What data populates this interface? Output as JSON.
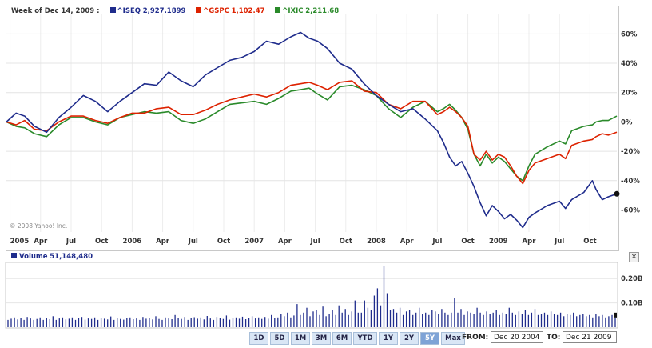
{
  "legend": {
    "week_label": "Week of Dec 14, 2009 :",
    "series": [
      {
        "name": "^ISEQ",
        "value": "2,927.1899",
        "color": "#1f2c8c"
      },
      {
        "name": "^GSPC",
        "value": "1,102.47",
        "color": "#dd2200"
      },
      {
        "name": "^IXIC",
        "value": "2,211.68",
        "color": "#2a8a2a"
      }
    ]
  },
  "copyright": "© 2008 Yahoo! Inc.",
  "volume": {
    "label": "Volume",
    "value": "51,148,480",
    "color": "#1f2c8c"
  },
  "close_button": "×",
  "range_buttons": [
    "1D",
    "5D",
    "1M",
    "3M",
    "6M",
    "YTD",
    "1Y",
    "2Y",
    "5Y",
    "Max"
  ],
  "active_range": "5Y",
  "from_label": "FROM:",
  "from_date": "Dec 20 2004",
  "to_label": "TO:",
  "to_date": "Dec 21 2009",
  "chart_data": [
    {
      "type": "line",
      "x_ticks": [
        "2005",
        "Apr",
        "Jul",
        "Oct",
        "2006",
        "Apr",
        "Jul",
        "Oct",
        "2007",
        "Apr",
        "Jul",
        "Oct",
        "2008",
        "Apr",
        "Jul",
        "Oct",
        "2009",
        "Apr",
        "Jul",
        "Oct"
      ],
      "y_ticks": [
        "60%",
        "40%",
        "20%",
        "0%",
        "-20%",
        "-40%",
        "-60%"
      ],
      "y_tick_values": [
        60,
        40,
        20,
        0,
        -20,
        -40,
        -60
      ],
      "ylim": [
        -75,
        70
      ],
      "xlim": [
        2004.97,
        2009.97
      ],
      "grid": true,
      "series": [
        {
          "name": "^ISEQ",
          "color": "#1f2c8c",
          "points": [
            [
              2004.97,
              0
            ],
            [
              2005.05,
              6
            ],
            [
              2005.12,
              4
            ],
            [
              2005.2,
              -3
            ],
            [
              2005.3,
              -7
            ],
            [
              2005.4,
              3
            ],
            [
              2005.5,
              10
            ],
            [
              2005.6,
              18
            ],
            [
              2005.7,
              14
            ],
            [
              2005.8,
              7
            ],
            [
              2005.9,
              14
            ],
            [
              2006.0,
              20
            ],
            [
              2006.1,
              26
            ],
            [
              2006.2,
              25
            ],
            [
              2006.3,
              34
            ],
            [
              2006.4,
              28
            ],
            [
              2006.5,
              24
            ],
            [
              2006.6,
              32
            ],
            [
              2006.7,
              37
            ],
            [
              2006.8,
              42
            ],
            [
              2006.9,
              44
            ],
            [
              2007.0,
              48
            ],
            [
              2007.1,
              55
            ],
            [
              2007.2,
              53
            ],
            [
              2007.3,
              58
            ],
            [
              2007.38,
              61
            ],
            [
              2007.45,
              57
            ],
            [
              2007.52,
              55
            ],
            [
              2007.6,
              50
            ],
            [
              2007.7,
              40
            ],
            [
              2007.8,
              36
            ],
            [
              2007.9,
              26
            ],
            [
              2008.0,
              18
            ],
            [
              2008.1,
              12
            ],
            [
              2008.2,
              7
            ],
            [
              2008.3,
              9
            ],
            [
              2008.4,
              2
            ],
            [
              2008.5,
              -6
            ],
            [
              2008.55,
              -14
            ],
            [
              2008.6,
              -24
            ],
            [
              2008.65,
              -30
            ],
            [
              2008.7,
              -27
            ],
            [
              2008.75,
              -35
            ],
            [
              2008.8,
              -44
            ],
            [
              2008.85,
              -55
            ],
            [
              2008.9,
              -64
            ],
            [
              2008.95,
              -57
            ],
            [
              2009.0,
              -61
            ],
            [
              2009.05,
              -66
            ],
            [
              2009.1,
              -63
            ],
            [
              2009.15,
              -67
            ],
            [
              2009.2,
              -72
            ],
            [
              2009.25,
              -65
            ],
            [
              2009.3,
              -62
            ],
            [
              2009.4,
              -57
            ],
            [
              2009.5,
              -54
            ],
            [
              2009.55,
              -59
            ],
            [
              2009.6,
              -53
            ],
            [
              2009.7,
              -48
            ],
            [
              2009.77,
              -40
            ],
            [
              2009.8,
              -46
            ],
            [
              2009.85,
              -53
            ],
            [
              2009.9,
              -51
            ],
            [
              2009.97,
              -49
            ]
          ]
        },
        {
          "name": "^GSPC",
          "color": "#dd2200",
          "points": [
            [
              2004.97,
              0
            ],
            [
              2005.05,
              -2
            ],
            [
              2005.12,
              1
            ],
            [
              2005.2,
              -5
            ],
            [
              2005.3,
              -6
            ],
            [
              2005.4,
              0
            ],
            [
              2005.5,
              4
            ],
            [
              2005.6,
              4
            ],
            [
              2005.7,
              1
            ],
            [
              2005.8,
              -1
            ],
            [
              2005.9,
              3
            ],
            [
              2006.0,
              6
            ],
            [
              2006.1,
              6
            ],
            [
              2006.2,
              9
            ],
            [
              2006.3,
              10
            ],
            [
              2006.4,
              5
            ],
            [
              2006.5,
              5
            ],
            [
              2006.6,
              8
            ],
            [
              2006.7,
              12
            ],
            [
              2006.8,
              15
            ],
            [
              2006.9,
              17
            ],
            [
              2007.0,
              19
            ],
            [
              2007.1,
              17
            ],
            [
              2007.2,
              20
            ],
            [
              2007.3,
              25
            ],
            [
              2007.38,
              26
            ],
            [
              2007.45,
              27
            ],
            [
              2007.52,
              25
            ],
            [
              2007.6,
              22
            ],
            [
              2007.7,
              27
            ],
            [
              2007.8,
              28
            ],
            [
              2007.9,
              21
            ],
            [
              2008.0,
              20
            ],
            [
              2008.1,
              12
            ],
            [
              2008.2,
              9
            ],
            [
              2008.3,
              14
            ],
            [
              2008.4,
              14
            ],
            [
              2008.5,
              5
            ],
            [
              2008.55,
              7
            ],
            [
              2008.6,
              10
            ],
            [
              2008.65,
              7
            ],
            [
              2008.7,
              3
            ],
            [
              2008.75,
              -3
            ],
            [
              2008.8,
              -22
            ],
            [
              2008.85,
              -26
            ],
            [
              2008.9,
              -20
            ],
            [
              2008.95,
              -26
            ],
            [
              2009.0,
              -22
            ],
            [
              2009.05,
              -24
            ],
            [
              2009.1,
              -30
            ],
            [
              2009.15,
              -37
            ],
            [
              2009.2,
              -42
            ],
            [
              2009.25,
              -33
            ],
            [
              2009.3,
              -28
            ],
            [
              2009.4,
              -25
            ],
            [
              2009.5,
              -22
            ],
            [
              2009.55,
              -25
            ],
            [
              2009.6,
              -16
            ],
            [
              2009.7,
              -13
            ],
            [
              2009.77,
              -12
            ],
            [
              2009.8,
              -10
            ],
            [
              2009.85,
              -8
            ],
            [
              2009.9,
              -9
            ],
            [
              2009.97,
              -7
            ]
          ]
        },
        {
          "name": "^IXIC",
          "color": "#2a8a2a",
          "points": [
            [
              2004.97,
              0
            ],
            [
              2005.05,
              -3
            ],
            [
              2005.12,
              -4
            ],
            [
              2005.2,
              -8
            ],
            [
              2005.3,
              -10
            ],
            [
              2005.4,
              -2
            ],
            [
              2005.5,
              3
            ],
            [
              2005.6,
              3
            ],
            [
              2005.7,
              0
            ],
            [
              2005.8,
              -2
            ],
            [
              2005.9,
              3
            ],
            [
              2006.0,
              5
            ],
            [
              2006.1,
              7
            ],
            [
              2006.2,
              6
            ],
            [
              2006.3,
              7
            ],
            [
              2006.4,
              1
            ],
            [
              2006.5,
              -1
            ],
            [
              2006.6,
              2
            ],
            [
              2006.7,
              7
            ],
            [
              2006.8,
              12
            ],
            [
              2006.9,
              13
            ],
            [
              2007.0,
              14
            ],
            [
              2007.1,
              12
            ],
            [
              2007.2,
              16
            ],
            [
              2007.3,
              21
            ],
            [
              2007.38,
              22
            ],
            [
              2007.45,
              23
            ],
            [
              2007.52,
              19
            ],
            [
              2007.6,
              15
            ],
            [
              2007.7,
              24
            ],
            [
              2007.8,
              25
            ],
            [
              2007.9,
              22
            ],
            [
              2008.0,
              18
            ],
            [
              2008.1,
              9
            ],
            [
              2008.2,
              3
            ],
            [
              2008.3,
              10
            ],
            [
              2008.4,
              14
            ],
            [
              2008.5,
              7
            ],
            [
              2008.55,
              9
            ],
            [
              2008.6,
              12
            ],
            [
              2008.65,
              8
            ],
            [
              2008.7,
              3
            ],
            [
              2008.75,
              -5
            ],
            [
              2008.8,
              -22
            ],
            [
              2008.85,
              -30
            ],
            [
              2008.9,
              -22
            ],
            [
              2008.95,
              -28
            ],
            [
              2009.0,
              -24
            ],
            [
              2009.05,
              -27
            ],
            [
              2009.1,
              -32
            ],
            [
              2009.15,
              -37
            ],
            [
              2009.2,
              -40
            ],
            [
              2009.25,
              -30
            ],
            [
              2009.3,
              -22
            ],
            [
              2009.4,
              -17
            ],
            [
              2009.5,
              -13
            ],
            [
              2009.55,
              -15
            ],
            [
              2009.6,
              -6
            ],
            [
              2009.7,
              -3
            ],
            [
              2009.77,
              -2
            ],
            [
              2009.8,
              0
            ],
            [
              2009.85,
              1
            ],
            [
              2009.9,
              1
            ],
            [
              2009.97,
              4
            ]
          ]
        }
      ]
    },
    {
      "type": "bar",
      "y_ticks": [
        "0.20B",
        "0.10B"
      ],
      "y_tick_values": [
        0.2,
        0.1
      ],
      "ylim": [
        0,
        0.26
      ],
      "unit": "billions",
      "xlim": [
        2004.97,
        2009.97
      ],
      "values": [
        0.03,
        0.035,
        0.04,
        0.032,
        0.038,
        0.03,
        0.042,
        0.036,
        0.03,
        0.034,
        0.04,
        0.03,
        0.038,
        0.033,
        0.045,
        0.03,
        0.036,
        0.04,
        0.032,
        0.035,
        0.04,
        0.03,
        0.037,
        0.042,
        0.031,
        0.036,
        0.034,
        0.04,
        0.03,
        0.038,
        0.035,
        0.032,
        0.044,
        0.03,
        0.039,
        0.034,
        0.031,
        0.037,
        0.04,
        0.033,
        0.036,
        0.03,
        0.042,
        0.035,
        0.038,
        0.032,
        0.045,
        0.034,
        0.03,
        0.04,
        0.036,
        0.033,
        0.05,
        0.038,
        0.034,
        0.042,
        0.03,
        0.037,
        0.041,
        0.035,
        0.04,
        0.032,
        0.046,
        0.036,
        0.03,
        0.042,
        0.038,
        0.034,
        0.048,
        0.031,
        0.037,
        0.04,
        0.035,
        0.043,
        0.033,
        0.038,
        0.045,
        0.036,
        0.04,
        0.034,
        0.042,
        0.035,
        0.05,
        0.038,
        0.04,
        0.055,
        0.045,
        0.06,
        0.04,
        0.048,
        0.095,
        0.05,
        0.06,
        0.08,
        0.045,
        0.065,
        0.07,
        0.05,
        0.085,
        0.045,
        0.055,
        0.07,
        0.05,
        0.09,
        0.06,
        0.075,
        0.05,
        0.065,
        0.11,
        0.06,
        0.06,
        0.11,
        0.08,
        0.07,
        0.13,
        0.16,
        0.09,
        0.25,
        0.14,
        0.07,
        0.075,
        0.06,
        0.08,
        0.05,
        0.065,
        0.07,
        0.05,
        0.06,
        0.08,
        0.055,
        0.06,
        0.05,
        0.07,
        0.065,
        0.055,
        0.075,
        0.06,
        0.05,
        0.06,
        0.12,
        0.06,
        0.075,
        0.05,
        0.065,
        0.06,
        0.055,
        0.08,
        0.06,
        0.05,
        0.065,
        0.055,
        0.06,
        0.07,
        0.05,
        0.06,
        0.055,
        0.08,
        0.06,
        0.05,
        0.065,
        0.055,
        0.07,
        0.05,
        0.06,
        0.075,
        0.05,
        0.055,
        0.06,
        0.05,
        0.065,
        0.055,
        0.05,
        0.06,
        0.045,
        0.055,
        0.05,
        0.06,
        0.045,
        0.05,
        0.055,
        0.045,
        0.05,
        0.04,
        0.055,
        0.045,
        0.05,
        0.04,
        0.045,
        0.05,
        0.04
      ]
    }
  ]
}
